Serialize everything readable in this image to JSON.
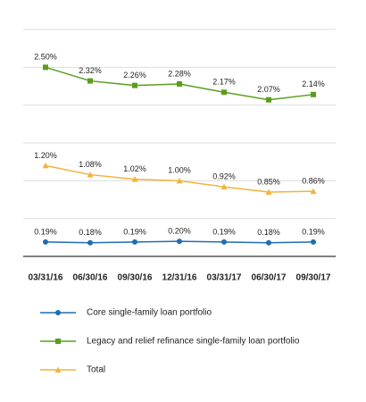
{
  "chart_data": {
    "type": "line",
    "categories": [
      "03/31/16",
      "06/30/16",
      "09/30/16",
      "12/31/16",
      "03/31/17",
      "06/30/17",
      "09/30/17"
    ],
    "series": [
      {
        "name": "Core single-family loan portfolio",
        "color": "#1f6db2",
        "marker": "circle",
        "values": [
          0.19,
          0.18,
          0.19,
          0.2,
          0.19,
          0.18,
          0.19
        ],
        "value_labels": [
          "0.19%",
          "0.18%",
          "0.19%",
          "0.20%",
          "0.19%",
          "0.18%",
          "0.19%"
        ]
      },
      {
        "name": "Legacy and relief refinance single-family loan portfolio",
        "color": "#5b9d1d",
        "marker": "square",
        "values": [
          2.5,
          2.32,
          2.26,
          2.28,
          2.17,
          2.07,
          2.14
        ],
        "value_labels": [
          "2.50%",
          "2.32%",
          "2.26%",
          "2.28%",
          "2.17%",
          "2.07%",
          "2.14%"
        ]
      },
      {
        "name": "Total",
        "color": "#f2b33d",
        "marker": "triangle",
        "values": [
          1.2,
          1.08,
          1.02,
          1.0,
          0.92,
          0.85,
          0.86
        ],
        "value_labels": [
          "1.20%",
          "1.08%",
          "1.02%",
          "1.00%",
          "0.92%",
          "0.85%",
          "0.86%"
        ]
      }
    ],
    "ylim": [
      0,
      3
    ],
    "yticks": [
      0,
      0.5,
      1,
      1.5,
      2,
      2.5,
      3
    ],
    "grid": true
  }
}
